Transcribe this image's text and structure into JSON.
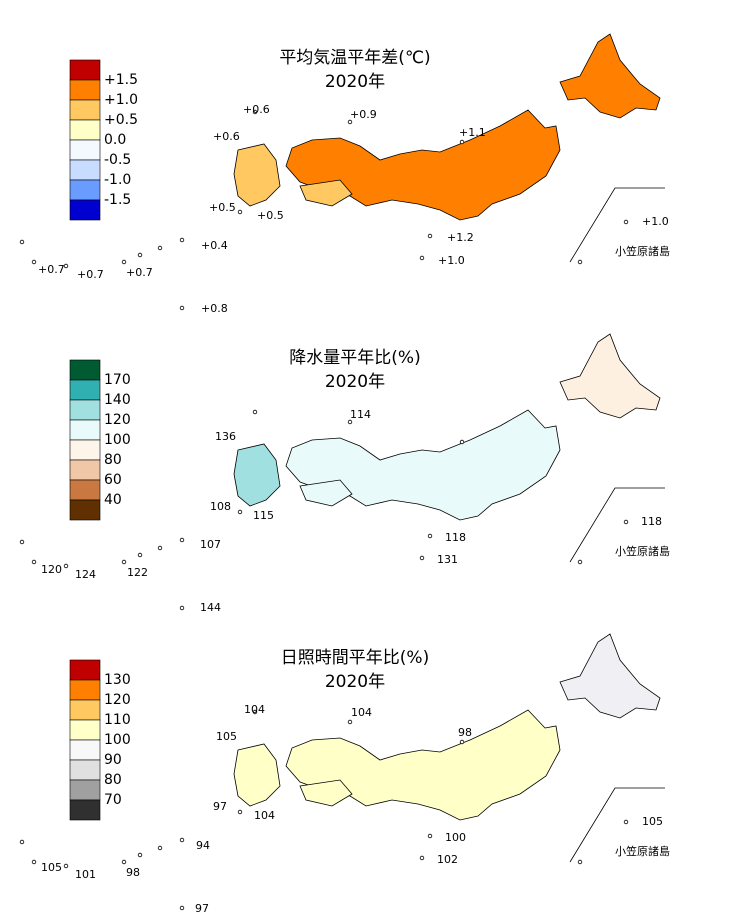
{
  "panels": [
    {
      "title": "平均気温平年差(℃)",
      "year": "2020年",
      "legend_boxes": [
        "#c00000",
        "#ff8000",
        "#ffc860",
        "#ffffc8",
        "#f4f8ff",
        "#c8dcff",
        "#6a9cff",
        "#0000d0"
      ],
      "legend_labels": [
        "+1.5",
        "+1.0",
        "+0.5",
        "0.0",
        "-0.5",
        "-1.0",
        "-1.5"
      ],
      "fills": {
        "hokkaido": "#ff8000",
        "honshu": "#ff8000",
        "kyushu": "#ffc860",
        "shikoku": "#ffc860"
      },
      "stations": [
        "+0.6",
        "+0.9",
        "+0.6",
        "+1.1",
        "+0.5",
        "+0.5",
        "+1.2",
        "+1.0",
        "+1.0",
        "+0.7",
        "+0.7",
        "+0.7",
        "+0.4",
        "+0.8"
      ],
      "islands_label": "小笠原諸島"
    },
    {
      "title": "降水量平年比(%)",
      "year": "2020年",
      "legend_boxes": [
        "#005a32",
        "#30b0b0",
        "#a0e0e0",
        "#e8fafa",
        "#fdf4ea",
        "#f0c8a8",
        "#c87840",
        "#603000"
      ],
      "legend_labels": [
        "170",
        "140",
        "120",
        "100",
        "80",
        "60",
        "40"
      ],
      "fills": {
        "hokkaido": "#fdf0e0",
        "honshu": "#e8fafa",
        "kyushu": "#a0e0e0",
        "shikoku": "#e8fafa"
      },
      "stations": [
        "136",
        "114",
        "108",
        "115",
        "118",
        "131",
        "118",
        "120",
        "124",
        "122",
        "107",
        "144"
      ],
      "islands_label": "小笠原諸島"
    },
    {
      "title": "日照時間平年比(%)",
      "year": "2020年",
      "legend_boxes": [
        "#c00000",
        "#ff8000",
        "#ffc860",
        "#ffffc8",
        "#f8f8f8",
        "#e0e0e0",
        "#a0a0a0",
        "#303030"
      ],
      "legend_labels": [
        "130",
        "120",
        "110",
        "100",
        "90",
        "80",
        "70"
      ],
      "fills": {
        "hokkaido": "#f0f0f4",
        "honshu": "#ffffc8",
        "kyushu": "#ffffc8",
        "shikoku": "#ffffc8"
      },
      "stations": [
        "104",
        "104",
        "105",
        "98",
        "97",
        "104",
        "100",
        "102",
        "105",
        "105",
        "101",
        "98",
        "94",
        "97"
      ],
      "islands_label": "小笠原諸島"
    }
  ]
}
